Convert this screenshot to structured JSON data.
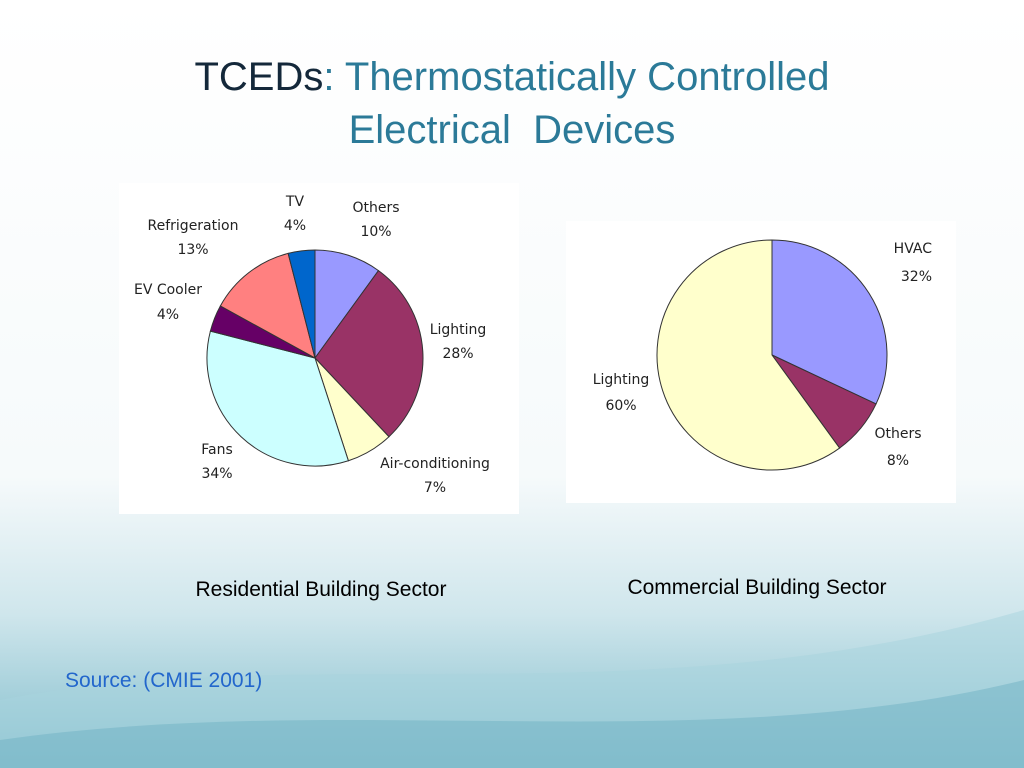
{
  "slide": {
    "title": [
      "TCEDs",
      ": Thermostatically Controlled",
      "Electrical  Devices"
    ],
    "source": "Source: (CMIE 2001)"
  },
  "chart_data": [
    {
      "type": "pie",
      "title": "Residential Building Sector",
      "categories": [
        "Others",
        "Lighting",
        "Air-conditioning",
        "Fans",
        "EV Cooler",
        "Refrigeration",
        "TV"
      ],
      "values": [
        10,
        28,
        7,
        34,
        4,
        13,
        4
      ],
      "value_labels": [
        "10%",
        "28%",
        "7%",
        "34%",
        "4%",
        "13%",
        "4%"
      ],
      "colors": [
        "#9999ff",
        "#993366",
        "#ffffcc",
        "#ccffff",
        "#660066",
        "#ff8080",
        "#0066cc"
      ]
    },
    {
      "type": "pie",
      "title": "Commercial Building Sector",
      "categories": [
        "HVAC",
        "Others",
        "Lighting"
      ],
      "values": [
        32,
        8,
        60
      ],
      "value_labels": [
        "32%",
        "8%",
        "60%"
      ],
      "colors": [
        "#9999ff",
        "#993366",
        "#ffffcc"
      ]
    }
  ]
}
